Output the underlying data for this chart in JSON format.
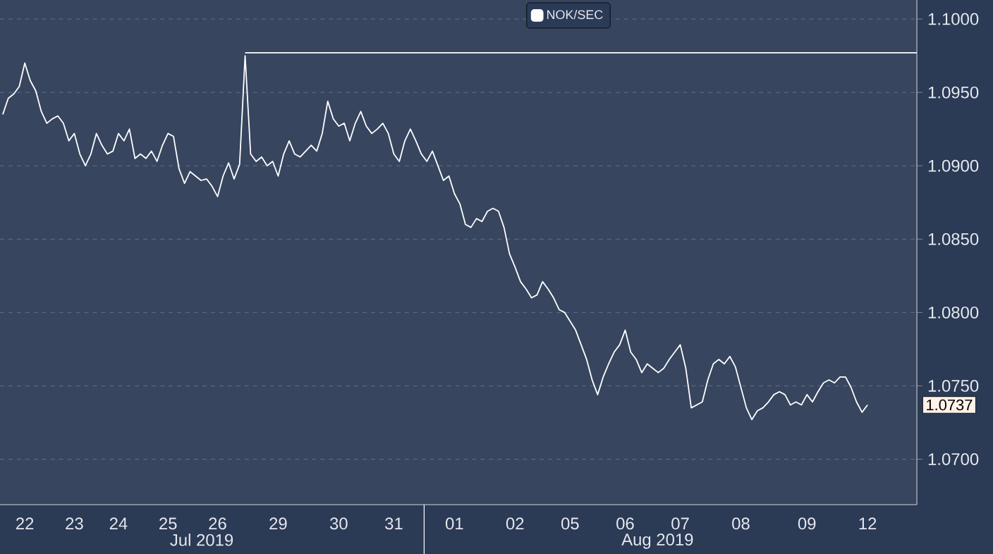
{
  "chart_data": {
    "type": "line",
    "series": [
      {
        "name": "NOK/SEC",
        "color": "#ffffff",
        "values": [
          1.0935,
          1.0946,
          1.0949,
          1.0954,
          1.097,
          1.0958,
          1.0951,
          1.0937,
          1.0929,
          1.0932,
          1.0934,
          1.0929,
          1.0917,
          1.0922,
          1.0908,
          1.09,
          1.0908,
          1.0922,
          1.0914,
          1.0908,
          1.091,
          1.0922,
          1.0917,
          1.0925,
          1.0905,
          1.0908,
          1.0905,
          1.091,
          1.0903,
          1.0914,
          1.0922,
          1.092,
          1.0898,
          1.0888,
          1.0896,
          1.0893,
          1.089,
          1.0891,
          1.0886,
          1.0879,
          1.0893,
          1.0902,
          1.0891,
          1.0901,
          1.0975,
          1.0908,
          1.0903,
          1.0906,
          1.09,
          1.0903,
          1.0893,
          1.0908,
          1.0917,
          1.0908,
          1.0906,
          1.091,
          1.0914,
          1.091,
          1.0922,
          1.0944,
          1.0932,
          1.0927,
          1.0929,
          1.0917,
          1.0929,
          1.0937,
          1.0927,
          1.0922,
          1.0925,
          1.0929,
          1.0922,
          1.0908,
          1.0903,
          1.0917,
          1.0925,
          1.0917,
          1.0908,
          1.0903,
          1.091,
          1.09,
          1.089,
          1.0893,
          1.0881,
          1.0874,
          1.086,
          1.0858,
          1.0864,
          1.0862,
          1.0869,
          1.0871,
          1.0869,
          1.0858,
          1.084,
          1.0831,
          1.0821,
          1.0816,
          1.081,
          1.0812,
          1.0821,
          1.0816,
          1.081,
          1.0802,
          1.08,
          1.0794,
          1.0788,
          1.0778,
          1.0768,
          1.0754,
          1.0744,
          1.0756,
          1.0765,
          1.0773,
          1.0778,
          1.0788,
          1.0773,
          1.0768,
          1.0759,
          1.0765,
          1.0762,
          1.0759,
          1.0762,
          1.0768,
          1.0773,
          1.0778,
          1.0762,
          1.0735,
          1.0737,
          1.0739,
          1.0754,
          1.0765,
          1.0768,
          1.0765,
          1.077,
          1.0763,
          1.0749,
          1.0735,
          1.0727,
          1.0733,
          1.0735,
          1.0739,
          1.0744,
          1.0746,
          1.0744,
          1.0737,
          1.0739,
          1.0737,
          1.0744,
          1.0739,
          1.0746,
          1.0752,
          1.0754,
          1.0752,
          1.0756,
          1.0756,
          1.0749,
          1.0739,
          1.0732,
          1.0737
        ]
      }
    ],
    "categories": [
      null,
      null,
      null,
      null,
      "22",
      null,
      null,
      null,
      null,
      null,
      null,
      null,
      null,
      "23",
      null,
      null,
      null,
      null,
      null,
      null,
      null,
      "24",
      null,
      null,
      null,
      null,
      null,
      null,
      null,
      null,
      "25",
      null,
      null,
      null,
      null,
      null,
      null,
      null,
      null,
      "26",
      null,
      null,
      null,
      null,
      null,
      null,
      null,
      null,
      null,
      null,
      "29",
      null,
      null,
      null,
      null,
      null,
      null,
      null,
      null,
      null,
      null,
      "30",
      null,
      null,
      null,
      null,
      null,
      null,
      null,
      null,
      null,
      "31",
      null,
      null,
      null,
      null,
      null,
      null,
      null,
      null,
      null,
      null,
      "01",
      null,
      null,
      null,
      null,
      null,
      null,
      null,
      null,
      null,
      null,
      "02",
      null,
      null,
      null,
      null,
      null,
      null,
      null,
      null,
      null,
      "05",
      null,
      null,
      null,
      null,
      null,
      null,
      null,
      null,
      null,
      "06",
      null,
      null,
      null,
      null,
      null,
      null,
      null,
      null,
      null,
      "07",
      null,
      null,
      null,
      null,
      null,
      null,
      null,
      null,
      null,
      null,
      "08",
      null,
      null,
      null,
      null,
      null,
      null,
      null,
      null,
      null,
      null,
      null,
      "09",
      null,
      null,
      null,
      null,
      null,
      null,
      null,
      null,
      null,
      null,
      "12"
    ],
    "ylim": [
      1.0669,
      1.1013
    ],
    "yticks": [
      {
        "value": 1.07,
        "label": "1.0700"
      },
      {
        "value": 1.075,
        "label": "1.0750"
      },
      {
        "value": 1.08,
        "label": "1.0800"
      },
      {
        "value": 1.085,
        "label": "1.0850"
      },
      {
        "value": 1.09,
        "label": "1.0900"
      },
      {
        "value": 1.095,
        "label": "1.0950"
      },
      {
        "value": 1.1,
        "label": "1.1000"
      }
    ],
    "ref_lines": [
      {
        "axis": "y",
        "value": 1.0977,
        "color": "#ffffff"
      }
    ],
    "annotations": [
      "Jul 2019",
      "Aug 2019",
      "1.0737"
    ],
    "grid": "y",
    "legend": "top"
  }
}
